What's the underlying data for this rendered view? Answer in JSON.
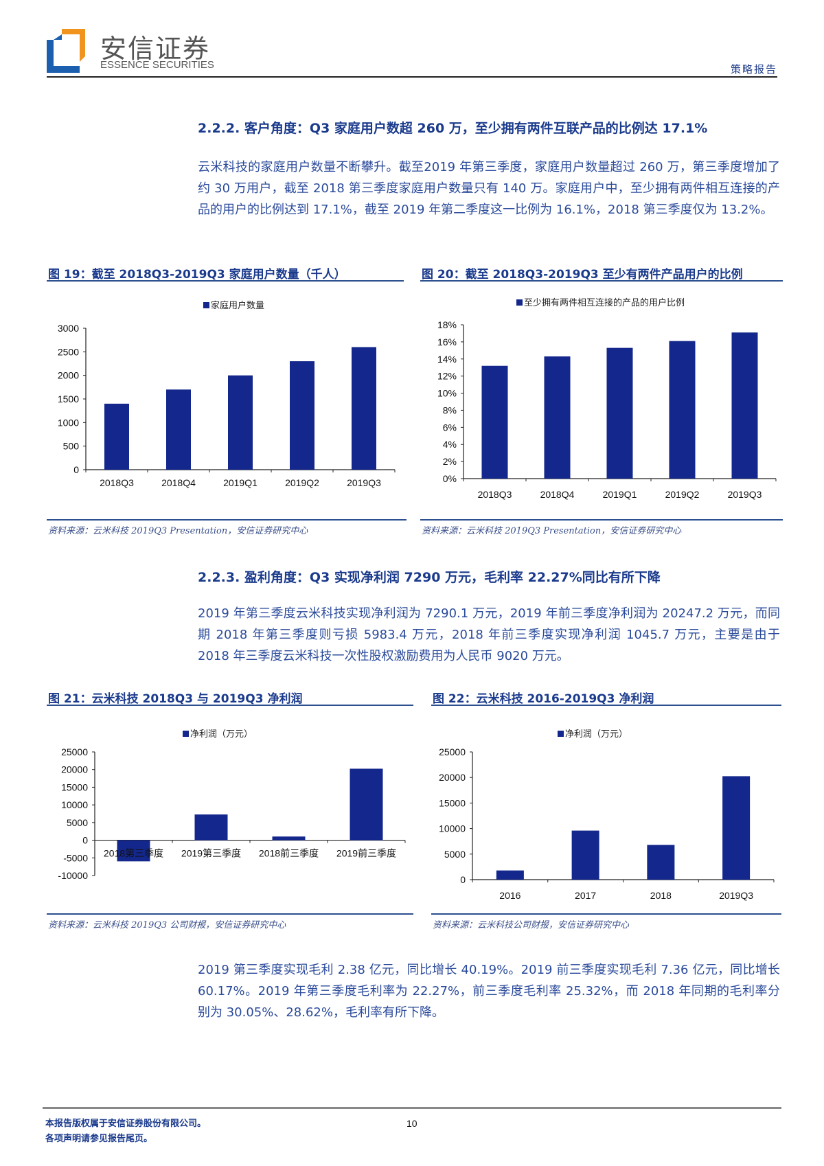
{
  "header": {
    "logo_cn": "安信证券",
    "logo_en": "ESSENCE SECURITIES",
    "report_type": "策略报告",
    "colors": {
      "logo_blue": "#1b5fae",
      "logo_orange": "#f0941e"
    }
  },
  "sections": [
    {
      "title": "2.2.2. 客户角度：Q3 家庭用户数超 260 万，至少拥有两件互联产品的比例达 17.1%",
      "paragraph": "云米科技的家庭用户数量不断攀升。截至2019 年第三季度，家庭用户数量超过 260 万，第三季度增加了约 30 万用户，截至 2018 第三季度家庭用户数量只有 140 万。家庭用户中，至少拥有两件相互连接的产品的用户的比例达到 17.1%，截至 2019 年第二季度这一比例为 16.1%，2018 第三季度仅为 13.2%。"
    },
    {
      "title": "2.2.3. 盈利角度：Q3 实现净利润 7290 万元，毛利率 22.27%同比有所下降",
      "paragraph": "2019 年第三季度云米科技实现净利润为 7290.1 万元，2019 年前三季度净利润为 20247.2 万元，而同期 2018 年第三季度则亏损 5983.4 万元，2018 年前三季度实现净利润 1045.7 万元，主要是由于 2018 年三季度云米科技一次性股权激励费用为人民币 9020 万元。"
    },
    {
      "paragraph": "2019 第三季度实现毛利 2.38 亿元，同比增长 40.19%。2019 前三季度实现毛利 7.36 亿元，同比增长 60.17%。2019 年第三季度毛利率为 22.27%，前三季度毛利率 25.32%，而 2018 年同期的毛利率分别为 30.05%、28.62%，毛利率有所下降。"
    }
  ],
  "figures": [
    {
      "title": "图 19：截至 2018Q3-2019Q3 家庭用户数量（千人）",
      "legend": "家庭用户数量",
      "source": "资料来源：云米科技 2019Q3 Presentation，安信证券研究中心"
    },
    {
      "title": "图 20：截至 2018Q3-2019Q3 至少有两件产品用户的比例",
      "legend": "至少拥有两件相互连接的产品的用户比例",
      "source": "资料来源：云米科技 2019Q3 Presentation，安信证券研究中心"
    },
    {
      "title": "图 21：云米科技 2018Q3 与 2019Q3 净利润",
      "legend": "净利润（万元）",
      "source": "资料来源：云米科技 2019Q3 公司财报，安信证券研究中心"
    },
    {
      "title": "图 22：云米科技 2016-2019Q3 净利润",
      "legend": "净利润（万元）",
      "source": "资料来源：云米科技公司财报，安信证券研究中心"
    }
  ],
  "chart_data": [
    {
      "type": "bar",
      "title": "图 19：截至 2018Q3-2019Q3 家庭用户数量（千人）",
      "categories": [
        "2018Q3",
        "2018Q4",
        "2019Q1",
        "2019Q2",
        "2019Q3"
      ],
      "series": [
        {
          "name": "家庭用户数量",
          "values": [
            1400,
            1700,
            2000,
            2300,
            2600
          ]
        }
      ],
      "yticks": [
        "0",
        "500",
        "1000",
        "1500",
        "2000",
        "2500",
        "3000"
      ],
      "ylim": [
        0,
        3000
      ],
      "xlabel": "",
      "ylabel": "",
      "grid": false,
      "legend_position": "top",
      "color": "#13278c"
    },
    {
      "type": "bar",
      "title": "图 20：截至 2018Q3-2019Q3 至少有两件产品用户的比例",
      "categories": [
        "2018Q3",
        "2018Q4",
        "2019Q1",
        "2019Q2",
        "2019Q3"
      ],
      "series": [
        {
          "name": "至少拥有两件相互连接的产品的用户比例",
          "values": [
            13.2,
            14.3,
            15.3,
            16.1,
            17.1
          ]
        }
      ],
      "yticks": [
        "0%",
        "2%",
        "4%",
        "6%",
        "8%",
        "10%",
        "12%",
        "14%",
        "16%",
        "18%"
      ],
      "ylim": [
        0,
        18
      ],
      "unit": "%",
      "xlabel": "",
      "ylabel": "",
      "grid": false,
      "legend_position": "top",
      "color": "#13278c"
    },
    {
      "type": "bar",
      "title": "图 21：云米科技 2018Q3 与 2019Q3 净利润",
      "categories": [
        "2018第三季度",
        "2019第三季度",
        "2018前三季度",
        "2019前三季度"
      ],
      "series": [
        {
          "name": "净利润（万元）",
          "values": [
            -5983.4,
            7290.1,
            1045.7,
            20247.2
          ]
        }
      ],
      "yticks": [
        "-10000",
        "-5000",
        "0",
        "5000",
        "10000",
        "15000",
        "20000",
        "25000"
      ],
      "ylim": [
        -10000,
        25000
      ],
      "xlabel": "",
      "ylabel": "",
      "grid": false,
      "legend_position": "top",
      "color": "#13278c"
    },
    {
      "type": "bar",
      "title": "图 22：云米科技 2016-2019Q3 净利润",
      "categories": [
        "2016",
        "2017",
        "2018",
        "2019Q3"
      ],
      "series": [
        {
          "name": "净利润（万元）",
          "values": [
            1800,
            9600,
            6800,
            20247.2
          ]
        }
      ],
      "yticks": [
        "0",
        "5000",
        "10000",
        "15000",
        "20000",
        "25000"
      ],
      "ylim": [
        0,
        25000
      ],
      "xlabel": "",
      "ylabel": "",
      "grid": false,
      "legend_position": "top",
      "color": "#13278c"
    }
  ],
  "footer": {
    "line1": "本报告版权属于安信证券股份有限公司。",
    "line2": "各项声明请参见报告尾页。",
    "page_number": "10"
  }
}
